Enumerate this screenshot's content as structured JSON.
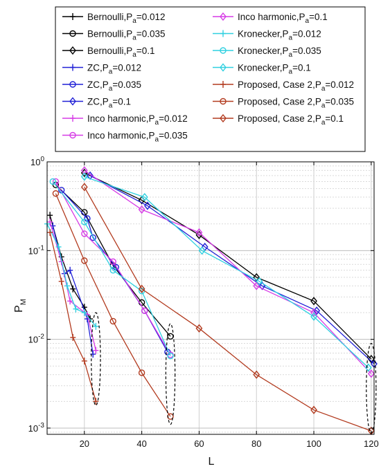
{
  "chart_data": {
    "type": "line",
    "xlabel": "L",
    "ylabel_main": "P",
    "ylabel_sub": "M",
    "yscale": "log",
    "xlim": [
      7,
      121
    ],
    "ylim": [
      0.00085,
      1
    ],
    "xticks": [
      20,
      40,
      60,
      80,
      100,
      120
    ],
    "xtick_labels": [
      "20",
      "40",
      "60",
      "80",
      "100",
      "120"
    ],
    "yticks": [
      0.001,
      0.01,
      0.1,
      1
    ],
    "ytick_labels": [
      {
        "base": "10",
        "exp": "-3"
      },
      {
        "base": "10",
        "exp": "-2"
      },
      {
        "base": "10",
        "exp": "-1"
      },
      {
        "base": "10",
        "exp": "0"
      }
    ],
    "grid": true,
    "legend_position": "top",
    "series": [
      {
        "name": "Bernoulli,P",
        "sub": "a",
        "pa": "=0.012",
        "color": "#000000",
        "marker": "plus",
        "x": [
          8,
          12,
          16,
          20,
          22
        ],
        "y": [
          0.25,
          0.085,
          0.037,
          0.023,
          0.017
        ]
      },
      {
        "name": "Bernoulli,P",
        "sub": "a",
        "pa": "=0.035",
        "color": "#000000",
        "marker": "circle",
        "x": [
          10,
          20,
          30,
          40,
          50
        ],
        "y": [
          0.55,
          0.27,
          0.068,
          0.026,
          0.0108
        ]
      },
      {
        "name": "Bernoulli,P",
        "sub": "a",
        "pa": "=0.1",
        "color": "#000000",
        "marker": "diamond",
        "x": [
          20,
          40,
          60,
          80,
          100,
          120
        ],
        "y": [
          0.75,
          0.37,
          0.15,
          0.05,
          0.027,
          0.006
        ]
      },
      {
        "name": "ZC,P",
        "sub": "a",
        "pa": "=0.012",
        "color": "#1f1fd6",
        "marker": "plus",
        "x": [
          9,
          13,
          15,
          21,
          23
        ],
        "y": [
          0.19,
          0.055,
          0.06,
          0.017,
          0.0068
        ]
      },
      {
        "name": "ZC,P",
        "sub": "a",
        "pa": "=0.035",
        "color": "#1f1fd6",
        "marker": "circle",
        "x": [
          12,
          21,
          23,
          31,
          41,
          49
        ],
        "y": [
          0.48,
          0.23,
          0.14,
          0.065,
          0.021,
          0.0072
        ]
      },
      {
        "name": "ZC,P",
        "sub": "a",
        "pa": "=0.1",
        "color": "#1f1fd6",
        "marker": "diamond",
        "x": [
          22,
          42,
          62,
          82,
          101,
          121
        ],
        "y": [
          0.7,
          0.32,
          0.11,
          0.04,
          0.021,
          0.0053
        ]
      },
      {
        "name": "Inco harmonic,P",
        "sub": "a",
        "pa": "=0.012",
        "color": "#d63ae6",
        "marker": "plus",
        "x": [
          8,
          12,
          15,
          21,
          24
        ],
        "y": [
          0.21,
          0.075,
          0.027,
          0.019,
          0.0075
        ]
      },
      {
        "name": "Inco harmonic,P",
        "sub": "a",
        "pa": "=0.035",
        "color": "#d63ae6",
        "marker": "circle",
        "x": [
          10,
          20,
          30,
          41,
          50
        ],
        "y": [
          0.6,
          0.155,
          0.075,
          0.021,
          0.0067
        ]
      },
      {
        "name": "Inco harmonic,P",
        "sub": "a",
        "pa": "=0.1",
        "color": "#d63ae6",
        "marker": "diamond",
        "x": [
          20,
          40,
          60,
          80,
          100,
          120
        ],
        "y": [
          0.8,
          0.29,
          0.16,
          0.04,
          0.02,
          0.0041
        ]
      },
      {
        "name": "Kronecker,P",
        "sub": "a",
        "pa": "=0.012",
        "color": "#2fd0e0",
        "marker": "plus",
        "x": [
          7,
          11,
          14,
          17,
          20,
          24
        ],
        "y": [
          0.2,
          0.11,
          0.04,
          0.022,
          0.02,
          0.014
        ]
      },
      {
        "name": "Kronecker,P",
        "sub": "a",
        "pa": "=0.035",
        "color": "#2fd0e0",
        "marker": "circle",
        "x": [
          9,
          20,
          30,
          40,
          50
        ],
        "y": [
          0.6,
          0.21,
          0.06,
          0.035,
          0.0065
        ]
      },
      {
        "name": "Kronecker,P",
        "sub": "a",
        "pa": "=0.1",
        "color": "#2fd0e0",
        "marker": "diamond",
        "x": [
          20,
          41,
          61,
          81,
          100,
          119
        ],
        "y": [
          0.68,
          0.4,
          0.1,
          0.045,
          0.018,
          0.0048
        ]
      },
      {
        "name": "Proposed, Case 2,P",
        "sub": "a",
        "pa": "=0.012",
        "color": "#b23a1e",
        "marker": "plus",
        "x": [
          8,
          12,
          16,
          20,
          24
        ],
        "y": [
          0.16,
          0.045,
          0.0105,
          0.0057,
          0.002
        ]
      },
      {
        "name": "Proposed, Case 2,P",
        "sub": "a",
        "pa": "=0.035",
        "color": "#b23a1e",
        "marker": "circle",
        "x": [
          10,
          20,
          30,
          40,
          50
        ],
        "y": [
          0.44,
          0.077,
          0.016,
          0.0042,
          0.00135
        ]
      },
      {
        "name": "Proposed, Case 2,P",
        "sub": "a",
        "pa": "=0.1",
        "color": "#b23a1e",
        "marker": "diamond",
        "x": [
          20,
          40,
          60,
          80,
          100,
          120
        ],
        "y": [
          0.52,
          0.037,
          0.0133,
          0.004,
          0.0016,
          0.00093
        ]
      }
    ],
    "annotations": [
      {
        "type": "dashed-ellipse",
        "cx": 24,
        "y_center": 0.0039,
        "rx": 1.6,
        "y_top": 0.02,
        "y_bottom": 0.0018
      },
      {
        "type": "dashed-ellipse",
        "cx": 50,
        "y_center": 0.0036,
        "rx": 1.6,
        "y_top": 0.015,
        "y_bottom": 0.0011
      },
      {
        "type": "dashed-ellipse",
        "cx": 120,
        "y_center": 0.0022,
        "rx": 1.7,
        "y_top": 0.009,
        "y_bottom": 0.00088
      }
    ]
  }
}
